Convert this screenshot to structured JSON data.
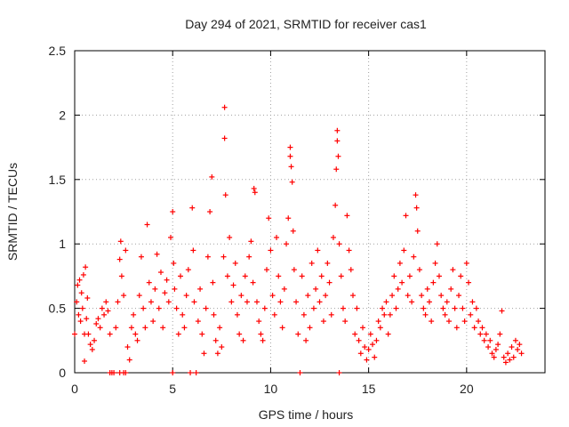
{
  "chart_data": {
    "type": "scatter",
    "title": "Day 294 of 2021, SRMTID for receiver cas1",
    "xlabel": "GPS time / hours",
    "ylabel": "SRMTID / TECUs",
    "xlim": [
      0,
      24
    ],
    "ylim": [
      0,
      2.5
    ],
    "xticks": [
      "0",
      "5",
      "10",
      "15",
      "20"
    ],
    "xtick_values": [
      0,
      5,
      10,
      15,
      20
    ],
    "yticks": [
      "0",
      "0.5",
      "1",
      "1.5",
      "2",
      "2.5"
    ],
    "ytick_values": [
      0,
      0.5,
      1,
      1.5,
      2,
      2.5
    ],
    "grid": true,
    "marker": "+",
    "marker_color": "#ff0000",
    "series": [
      {
        "name": "SRMTID",
        "points": [
          [
            0.0,
            0.3
          ],
          [
            0.1,
            0.55
          ],
          [
            0.15,
            0.68
          ],
          [
            0.2,
            0.45
          ],
          [
            0.25,
            0.72
          ],
          [
            0.3,
            0.4
          ],
          [
            0.35,
            0.62
          ],
          [
            0.4,
            0.5
          ],
          [
            0.45,
            0.76
          ],
          [
            0.5,
            0.09
          ],
          [
            0.5,
            0.3
          ],
          [
            0.55,
            0.82
          ],
          [
            0.6,
            0.42
          ],
          [
            0.65,
            0.58
          ],
          [
            0.7,
            0.3
          ],
          [
            0.8,
            0.22
          ],
          [
            0.9,
            0.18
          ],
          [
            1.0,
            0.25
          ],
          [
            1.1,
            0.38
          ],
          [
            1.2,
            0.42
          ],
          [
            1.3,
            0.35
          ],
          [
            1.4,
            0.5
          ],
          [
            1.5,
            0.45
          ],
          [
            1.6,
            0.55
          ],
          [
            1.7,
            0.48
          ],
          [
            1.8,
            0.3
          ],
          [
            1.8,
            0.0
          ],
          [
            1.9,
            0.0
          ],
          [
            2.0,
            0.0
          ],
          [
            2.3,
            0.0
          ],
          [
            2.5,
            0.0
          ],
          [
            2.6,
            0.0
          ],
          [
            2.1,
            0.35
          ],
          [
            2.2,
            0.55
          ],
          [
            2.3,
            0.88
          ],
          [
            2.35,
            1.02
          ],
          [
            2.4,
            0.75
          ],
          [
            2.5,
            0.6
          ],
          [
            2.6,
            0.95
          ],
          [
            2.7,
            0.2
          ],
          [
            2.8,
            0.1
          ],
          [
            2.9,
            0.35
          ],
          [
            3.0,
            0.45
          ],
          [
            3.1,
            0.3
          ],
          [
            3.2,
            0.25
          ],
          [
            3.3,
            0.6
          ],
          [
            3.4,
            0.9
          ],
          [
            3.5,
            0.5
          ],
          [
            3.6,
            0.35
          ],
          [
            3.7,
            1.15
          ],
          [
            3.8,
            0.7
          ],
          [
            3.9,
            0.55
          ],
          [
            4.0,
            0.4
          ],
          [
            4.1,
            0.65
          ],
          [
            4.2,
            0.92
          ],
          [
            4.3,
            0.5
          ],
          [
            4.4,
            0.78
          ],
          [
            4.5,
            0.35
          ],
          [
            4.6,
            0.62
          ],
          [
            4.7,
            0.72
          ],
          [
            4.8,
            0.55
          ],
          [
            4.9,
            1.05
          ],
          [
            5.0,
            1.25
          ],
          [
            5.0,
            0.0
          ],
          [
            5.05,
            0.85
          ],
          [
            5.1,
            0.65
          ],
          [
            5.2,
            0.5
          ],
          [
            5.3,
            0.3
          ],
          [
            5.4,
            0.75
          ],
          [
            5.5,
            0.45
          ],
          [
            5.6,
            0.35
          ],
          [
            5.7,
            0.6
          ],
          [
            5.8,
            0.8
          ],
          [
            5.9,
            0.0
          ],
          [
            6.0,
            1.28
          ],
          [
            6.05,
            0.95
          ],
          [
            6.1,
            0.55
          ],
          [
            6.2,
            0.0
          ],
          [
            6.3,
            0.4
          ],
          [
            6.4,
            0.65
          ],
          [
            6.5,
            0.3
          ],
          [
            6.6,
            0.15
          ],
          [
            6.7,
            0.5
          ],
          [
            6.8,
            0.9
          ],
          [
            6.9,
            1.25
          ],
          [
            7.0,
            1.52
          ],
          [
            7.05,
            0.7
          ],
          [
            7.1,
            0.45
          ],
          [
            7.2,
            0.25
          ],
          [
            7.3,
            0.15
          ],
          [
            7.4,
            0.35
          ],
          [
            7.5,
            0.2
          ],
          [
            7.6,
            0.9
          ],
          [
            7.65,
            2.06
          ],
          [
            7.65,
            1.82
          ],
          [
            7.7,
            1.38
          ],
          [
            7.8,
            0.75
          ],
          [
            7.9,
            1.05
          ],
          [
            8.0,
            0.55
          ],
          [
            8.1,
            0.68
          ],
          [
            8.2,
            0.85
          ],
          [
            8.3,
            0.45
          ],
          [
            8.4,
            0.3
          ],
          [
            8.5,
            0.6
          ],
          [
            8.6,
            0.25
          ],
          [
            8.7,
            0.75
          ],
          [
            8.8,
            0.55
          ],
          [
            8.9,
            0.9
          ],
          [
            9.0,
            1.02
          ],
          [
            9.1,
            0.7
          ],
          [
            9.15,
            1.43
          ],
          [
            9.2,
            1.4
          ],
          [
            9.3,
            0.55
          ],
          [
            9.4,
            0.4
          ],
          [
            9.5,
            0.3
          ],
          [
            9.6,
            0.25
          ],
          [
            9.7,
            0.5
          ],
          [
            9.8,
            0.8
          ],
          [
            9.9,
            1.2
          ],
          [
            10.0,
            0.95
          ],
          [
            10.1,
            0.6
          ],
          [
            10.2,
            0.45
          ],
          [
            10.3,
            1.05
          ],
          [
            10.4,
            0.75
          ],
          [
            10.5,
            0.55
          ],
          [
            10.6,
            0.35
          ],
          [
            10.7,
            0.65
          ],
          [
            10.8,
            1.0
          ],
          [
            10.9,
            1.2
          ],
          [
            11.0,
            1.75
          ],
          [
            11.0,
            1.68
          ],
          [
            11.05,
            1.6
          ],
          [
            11.1,
            1.48
          ],
          [
            11.15,
            1.1
          ],
          [
            11.2,
            0.8
          ],
          [
            11.3,
            0.55
          ],
          [
            11.4,
            0.3
          ],
          [
            11.5,
            0.0
          ],
          [
            11.6,
            0.75
          ],
          [
            11.7,
            0.45
          ],
          [
            11.8,
            0.25
          ],
          [
            11.9,
            0.6
          ],
          [
            12.0,
            0.35
          ],
          [
            12.1,
            0.85
          ],
          [
            12.2,
            0.5
          ],
          [
            12.3,
            0.65
          ],
          [
            12.4,
            0.95
          ],
          [
            12.5,
            0.55
          ],
          [
            12.6,
            0.75
          ],
          [
            12.7,
            0.4
          ],
          [
            12.8,
            0.6
          ],
          [
            12.9,
            0.85
          ],
          [
            13.0,
            0.7
          ],
          [
            13.1,
            0.45
          ],
          [
            13.2,
            1.05
          ],
          [
            13.3,
            1.3
          ],
          [
            13.35,
            1.58
          ],
          [
            13.4,
            1.88
          ],
          [
            13.4,
            1.8
          ],
          [
            13.45,
            1.68
          ],
          [
            13.5,
            0.0
          ],
          [
            13.5,
            1.0
          ],
          [
            13.6,
            0.75
          ],
          [
            13.7,
            0.5
          ],
          [
            13.8,
            0.4
          ],
          [
            13.9,
            1.22
          ],
          [
            14.0,
            0.95
          ],
          [
            14.1,
            0.8
          ],
          [
            14.2,
            0.6
          ],
          [
            14.3,
            0.3
          ],
          [
            14.4,
            0.5
          ],
          [
            14.5,
            0.25
          ],
          [
            14.6,
            0.15
          ],
          [
            14.7,
            0.35
          ],
          [
            14.8,
            0.2
          ],
          [
            14.9,
            0.1
          ],
          [
            15.0,
            0.18
          ],
          [
            15.1,
            0.3
          ],
          [
            15.2,
            0.22
          ],
          [
            15.3,
            0.12
          ],
          [
            15.4,
            0.25
          ],
          [
            15.5,
            0.4
          ],
          [
            15.6,
            0.35
          ],
          [
            15.7,
            0.5
          ],
          [
            15.8,
            0.45
          ],
          [
            15.9,
            0.55
          ],
          [
            16.0,
            0.3
          ],
          [
            16.1,
            0.45
          ],
          [
            16.2,
            0.6
          ],
          [
            16.3,
            0.75
          ],
          [
            16.4,
            0.5
          ],
          [
            16.5,
            0.65
          ],
          [
            16.6,
            0.85
          ],
          [
            16.7,
            0.7
          ],
          [
            16.8,
            0.95
          ],
          [
            16.9,
            1.22
          ],
          [
            17.0,
            0.6
          ],
          [
            17.1,
            0.75
          ],
          [
            17.2,
            0.55
          ],
          [
            17.3,
            0.9
          ],
          [
            17.4,
            1.38
          ],
          [
            17.45,
            1.28
          ],
          [
            17.5,
            1.1
          ],
          [
            17.6,
            0.8
          ],
          [
            17.7,
            0.6
          ],
          [
            17.8,
            0.5
          ],
          [
            17.9,
            0.45
          ],
          [
            18.0,
            0.65
          ],
          [
            18.1,
            0.55
          ],
          [
            18.2,
            0.4
          ],
          [
            18.3,
            0.7
          ],
          [
            18.4,
            0.85
          ],
          [
            18.5,
            1.0
          ],
          [
            18.6,
            0.75
          ],
          [
            18.7,
            0.6
          ],
          [
            18.8,
            0.5
          ],
          [
            18.9,
            0.45
          ],
          [
            19.0,
            0.55
          ],
          [
            19.1,
            0.4
          ],
          [
            19.2,
            0.65
          ],
          [
            19.3,
            0.8
          ],
          [
            19.4,
            0.5
          ],
          [
            19.5,
            0.35
          ],
          [
            19.6,
            0.6
          ],
          [
            19.7,
            0.75
          ],
          [
            19.8,
            0.5
          ],
          [
            19.9,
            0.4
          ],
          [
            20.0,
            0.85
          ],
          [
            20.1,
            0.7
          ],
          [
            20.2,
            0.45
          ],
          [
            20.3,
            0.55
          ],
          [
            20.4,
            0.35
          ],
          [
            20.5,
            0.5
          ],
          [
            20.6,
            0.4
          ],
          [
            20.7,
            0.3
          ],
          [
            20.8,
            0.35
          ],
          [
            20.9,
            0.25
          ],
          [
            21.0,
            0.3
          ],
          [
            21.1,
            0.2
          ],
          [
            21.2,
            0.25
          ],
          [
            21.3,
            0.15
          ],
          [
            21.4,
            0.12
          ],
          [
            21.5,
            0.18
          ],
          [
            21.6,
            0.22
          ],
          [
            21.7,
            0.3
          ],
          [
            21.8,
            0.48
          ],
          [
            21.9,
            0.12
          ],
          [
            22.0,
            0.08
          ],
          [
            22.1,
            0.15
          ],
          [
            22.2,
            0.1
          ],
          [
            22.3,
            0.2
          ],
          [
            22.4,
            0.12
          ],
          [
            22.5,
            0.25
          ],
          [
            22.6,
            0.18
          ],
          [
            22.7,
            0.22
          ],
          [
            22.8,
            0.15
          ]
        ]
      }
    ]
  }
}
